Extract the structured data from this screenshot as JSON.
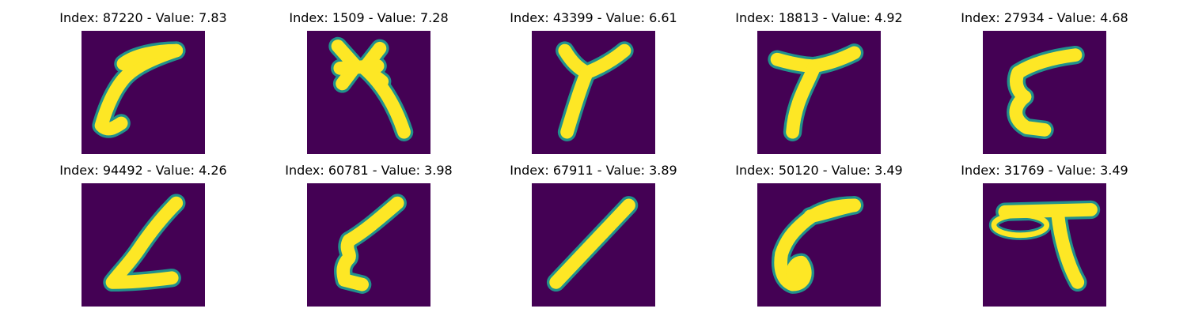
{
  "colors": {
    "background": "#440154",
    "foreground": "#fde725",
    "edge": "#21918c",
    "edge_mid": "#3b528b"
  },
  "label_prefix_index": "Index: ",
  "label_separator": " - ",
  "label_prefix_value": "Value: ",
  "panels": [
    {
      "index": "87220",
      "value": "7.83",
      "glyph": "slanted-stroke-with-hook"
    },
    {
      "index": "1509",
      "value": "7.28",
      "glyph": "cross-with-tail"
    },
    {
      "index": "43399",
      "value": "6.61",
      "glyph": "y-shape"
    },
    {
      "index": "18813",
      "value": "4.92",
      "glyph": "y-shape-wide"
    },
    {
      "index": "27934",
      "value": "4.68",
      "glyph": "curved-stroke"
    },
    {
      "index": "94492",
      "value": "4.26",
      "glyph": "l-shape"
    },
    {
      "index": "60781",
      "value": "3.98",
      "glyph": "thin-slanted-stroke"
    },
    {
      "index": "67911",
      "value": "3.89",
      "glyph": "diagonal-line"
    },
    {
      "index": "50120",
      "value": "3.49",
      "glyph": "loop-stroke"
    },
    {
      "index": "31769",
      "value": "3.49",
      "glyph": "loop-with-bar"
    }
  ]
}
